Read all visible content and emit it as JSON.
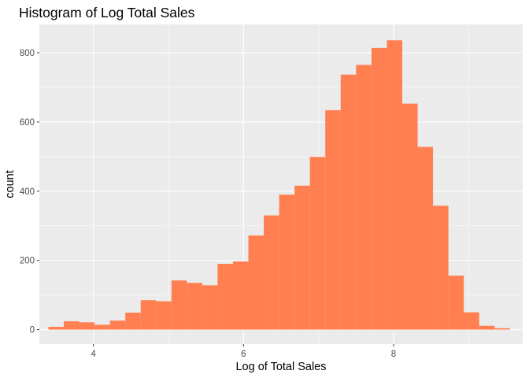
{
  "chart_data": {
    "type": "bar",
    "subtype": "histogram",
    "title": "Histogram of Log Total Sales",
    "xlabel": "Log of Total Sales",
    "ylabel": "count",
    "xlim": [
      3.28,
      9.72
    ],
    "ylim": [
      -42,
      882
    ],
    "x_ticks": [
      4,
      6,
      8
    ],
    "y_ticks": [
      0,
      200,
      400,
      600,
      800
    ],
    "grid": true,
    "legend": "none",
    "bin_width": 0.205,
    "bins": [
      {
        "x0": 3.4,
        "x1": 3.605,
        "count": 8
      },
      {
        "x0": 3.605,
        "x1": 3.81,
        "count": 24
      },
      {
        "x0": 3.81,
        "x1": 4.015,
        "count": 21
      },
      {
        "x0": 4.015,
        "x1": 4.22,
        "count": 14
      },
      {
        "x0": 4.22,
        "x1": 4.425,
        "count": 26
      },
      {
        "x0": 4.425,
        "x1": 4.63,
        "count": 49
      },
      {
        "x0": 4.63,
        "x1": 4.835,
        "count": 85
      },
      {
        "x0": 4.835,
        "x1": 5.04,
        "count": 82
      },
      {
        "x0": 5.04,
        "x1": 5.245,
        "count": 142
      },
      {
        "x0": 5.245,
        "x1": 5.45,
        "count": 135
      },
      {
        "x0": 5.45,
        "x1": 5.655,
        "count": 128
      },
      {
        "x0": 5.655,
        "x1": 5.86,
        "count": 190
      },
      {
        "x0": 5.86,
        "x1": 6.065,
        "count": 197
      },
      {
        "x0": 6.065,
        "x1": 6.27,
        "count": 272
      },
      {
        "x0": 6.27,
        "x1": 6.475,
        "count": 330
      },
      {
        "x0": 6.475,
        "x1": 6.68,
        "count": 390
      },
      {
        "x0": 6.68,
        "x1": 6.885,
        "count": 416
      },
      {
        "x0": 6.885,
        "x1": 7.09,
        "count": 499
      },
      {
        "x0": 7.09,
        "x1": 7.295,
        "count": 634
      },
      {
        "x0": 7.295,
        "x1": 7.5,
        "count": 737
      },
      {
        "x0": 7.5,
        "x1": 7.705,
        "count": 765
      },
      {
        "x0": 7.705,
        "x1": 7.91,
        "count": 814
      },
      {
        "x0": 7.91,
        "x1": 8.115,
        "count": 836
      },
      {
        "x0": 8.115,
        "x1": 8.32,
        "count": 653
      },
      {
        "x0": 8.32,
        "x1": 8.525,
        "count": 528
      },
      {
        "x0": 8.525,
        "x1": 8.73,
        "count": 358
      },
      {
        "x0": 8.73,
        "x1": 8.935,
        "count": 156
      },
      {
        "x0": 8.935,
        "x1": 9.14,
        "count": 50
      },
      {
        "x0": 9.14,
        "x1": 9.345,
        "count": 11
      },
      {
        "x0": 9.345,
        "x1": 9.55,
        "count": 4
      }
    ],
    "colors": {
      "bar_fill": "#FF7F50",
      "panel_background": "#EBEBEB",
      "grid_major": "#FFFFFF",
      "tick_label": "#4D4D4D"
    }
  }
}
